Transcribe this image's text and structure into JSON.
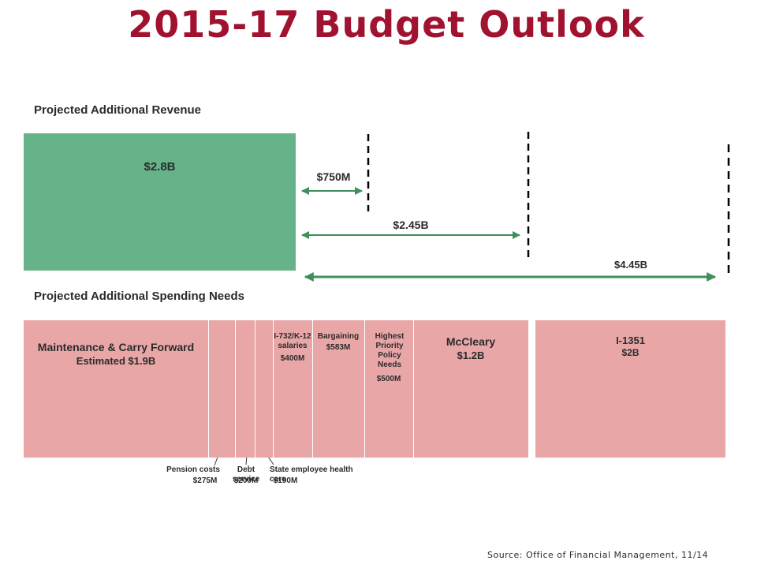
{
  "title": "2015-17 Budget Outlook",
  "source": "Source: Office of Financial Management, 11/14",
  "chart_data": {
    "type": "bar",
    "revenue": {
      "label": "Projected Additional Revenue",
      "value_text": "$2.8B",
      "value": 2.8
    },
    "gaps": [
      {
        "label": "$750M",
        "value": 0.75
      },
      {
        "label": "$2.45B",
        "value": 2.45
      },
      {
        "label": "$4.45B",
        "value": 4.45
      }
    ],
    "spending": {
      "label": "Projected Additional Spending Needs",
      "segments": [
        {
          "name": "Maintenance & Carry Forward",
          "value_text": "Estimated $1.9B",
          "value": 1.9
        },
        {
          "name": "Pension costs",
          "value_text": "$275M",
          "value": 0.275
        },
        {
          "name": "Debt service",
          "value_text": "$200M",
          "value": 0.2
        },
        {
          "name": "State employee health care",
          "value_text": "$190M",
          "value": 0.19
        },
        {
          "name": "I-732/K-12 salaries",
          "value_text": "$400M",
          "value": 0.4
        },
        {
          "name": "Bargaining",
          "value_text": "$583M",
          "value": 0.583
        },
        {
          "name": "Highest Priority Policy Needs",
          "value_text": "$500M",
          "value": 0.5
        },
        {
          "name": "McCleary",
          "value_text": "$1.2B",
          "value": 1.2
        },
        {
          "name": "I-1351",
          "value_text": "$2B",
          "value": 2.0
        }
      ]
    },
    "colors": {
      "revenue": "#66b38a",
      "spending": "#e8a6a7",
      "arrow": "#3f8f5c",
      "title": "#a0122f"
    }
  }
}
